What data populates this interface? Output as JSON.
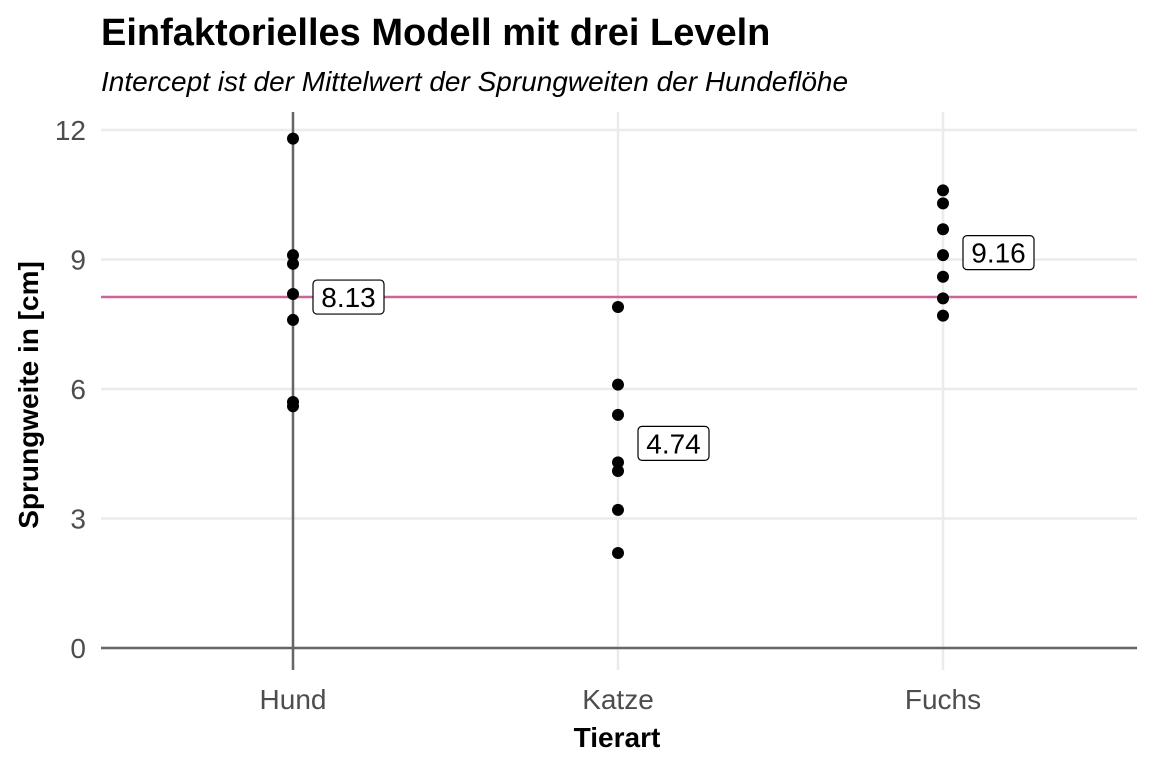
{
  "chart_data": {
    "type": "scatter",
    "title": "Einfaktorielles Modell mit drei Leveln",
    "subtitle": "Intercept ist der Mittelwert der Sprungweiten der Hundeflöhe",
    "xlabel": "Tierart",
    "ylabel": "Sprungweite in [cm]",
    "categories": [
      "Hund",
      "Katze",
      "Fuchs"
    ],
    "ylim": [
      0,
      12
    ],
    "yticks": [
      "0",
      "3",
      "6",
      "9",
      "12"
    ],
    "grid": true,
    "groups": [
      {
        "category": "Hund",
        "values": [
          11.8,
          9.1,
          8.9,
          8.2,
          7.6,
          5.7,
          5.6
        ]
      },
      {
        "category": "Katze",
        "values": [
          7.9,
          6.1,
          5.4,
          4.3,
          4.1,
          3.2,
          2.2
        ]
      },
      {
        "category": "Fuchs",
        "values": [
          10.6,
          10.3,
          9.7,
          9.1,
          8.6,
          8.1,
          7.7
        ]
      }
    ],
    "labels": [
      {
        "category": "Hund",
        "text": "8.13",
        "y": 8.13
      },
      {
        "category": "Katze",
        "text": "4.74",
        "y": 4.74
      },
      {
        "category": "Fuchs",
        "text": "9.16",
        "y": 9.16
      }
    ],
    "hline": {
      "y": 8.13,
      "color": "#cc6699"
    },
    "reference_line_color": "#666666",
    "point_color": "#000000",
    "grid_color": "#ebebeb"
  }
}
